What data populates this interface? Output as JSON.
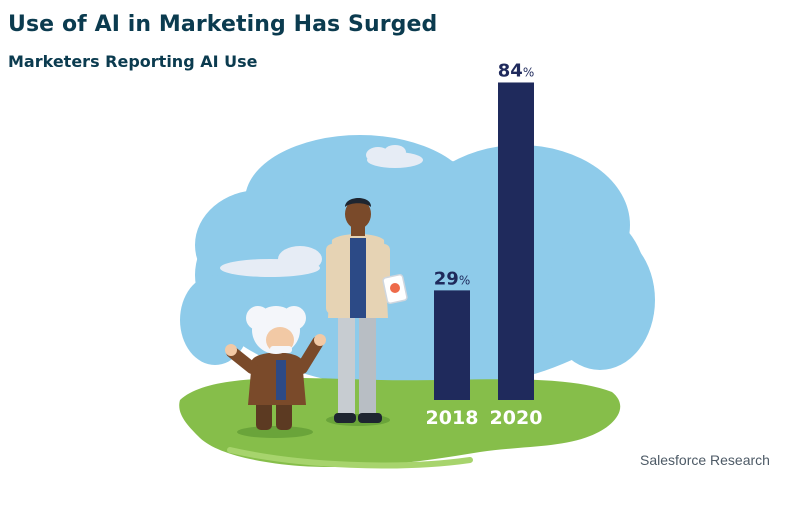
{
  "title": "Use of AI in Marketing Has Surged",
  "subtitle": "Marketers Reporting AI Use",
  "source": "Salesforce Research",
  "colors": {
    "bar": "#1f2a5c",
    "sky": "#8ecbea",
    "grass": "#86be4a",
    "label_on_grass": "#ffffff",
    "value_label": "#1f2a5c"
  },
  "chart_data": {
    "type": "bar",
    "title": "Use of AI in Marketing Has Surged",
    "subtitle": "Marketers Reporting AI Use",
    "categories": [
      "2018",
      "2020"
    ],
    "values": [
      29,
      84
    ],
    "value_labels": [
      "29%",
      "84%"
    ],
    "unit": "%",
    "ylim": [
      0,
      100
    ],
    "grid": false,
    "legend": "none"
  },
  "illustration": {
    "characters": [
      "man-with-tablet",
      "einstein-mascot"
    ],
    "background": [
      "cloud",
      "grass-field"
    ]
  }
}
